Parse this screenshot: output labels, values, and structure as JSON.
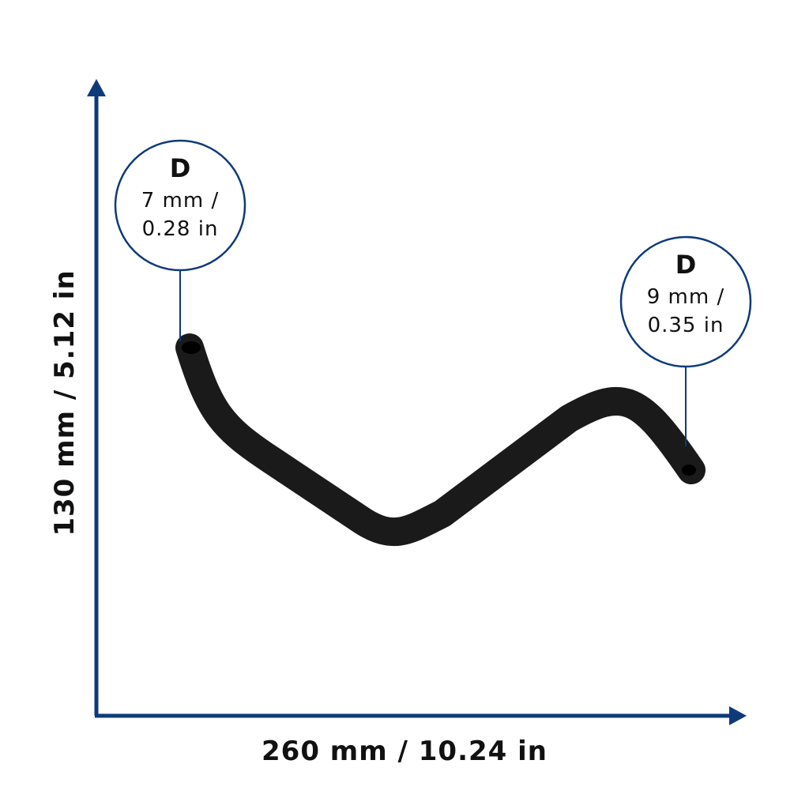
{
  "dimensions": {
    "width": "260 mm / 10.24 in",
    "height": "130 mm / 5.12 in"
  },
  "callouts": [
    {
      "label": "D",
      "line1": "7 mm /",
      "line2": "0.28 in"
    },
    {
      "label": "D",
      "line1": "9 mm /",
      "line2": "0.35 in"
    }
  ]
}
